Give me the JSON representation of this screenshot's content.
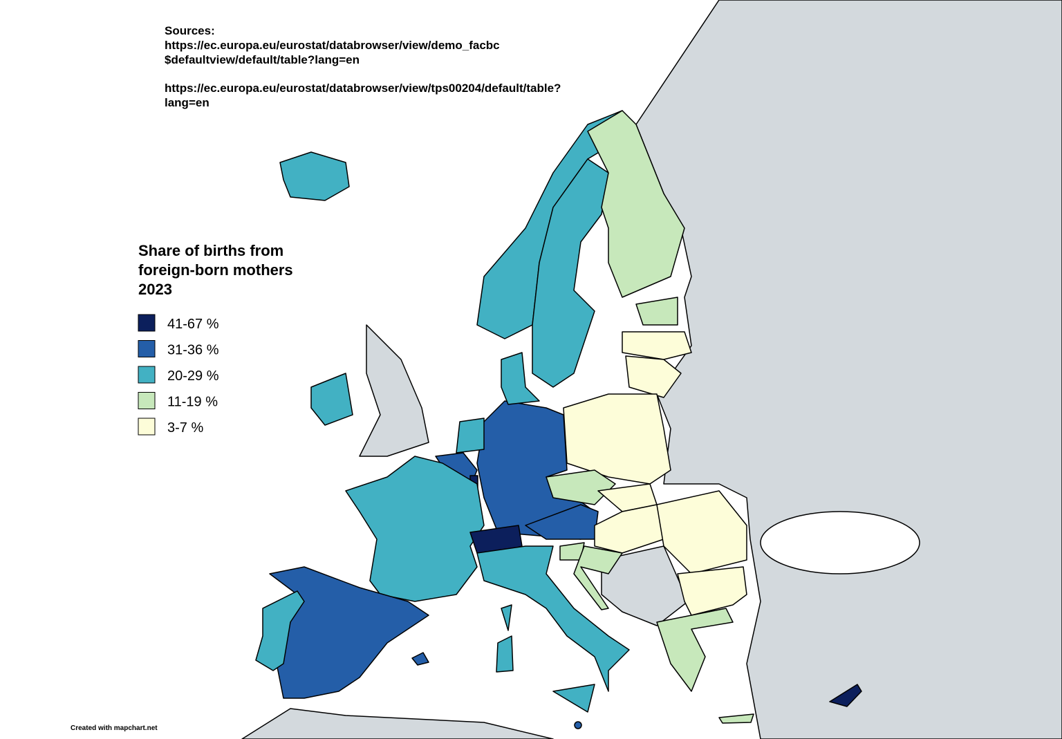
{
  "sources": {
    "heading": "Sources:",
    "lines": [
      "https://ec.europa.eu/eurostat/databrowser/view/demo_facbc",
      "$defaultview/default/table?lang=en",
      "https://ec.europa.eu/eurostat/databrowser/view/tps00204/default/table?",
      "lang=en"
    ]
  },
  "legend": {
    "title": [
      "Share of births from",
      "foreign-born mothers",
      "2023"
    ],
    "items": [
      {
        "label": "41-67 %",
        "color": "#0c1f5c"
      },
      {
        "label": "31-36 %",
        "color": "#245ea8"
      },
      {
        "label": "20-29 %",
        "color": "#42b1c3"
      },
      {
        "label": "11-19 %",
        "color": "#c7e8bb"
      },
      {
        "label": "3-7 %",
        "color": "#fdfdd9"
      }
    ]
  },
  "credit": "Created with mapchart.net"
}
